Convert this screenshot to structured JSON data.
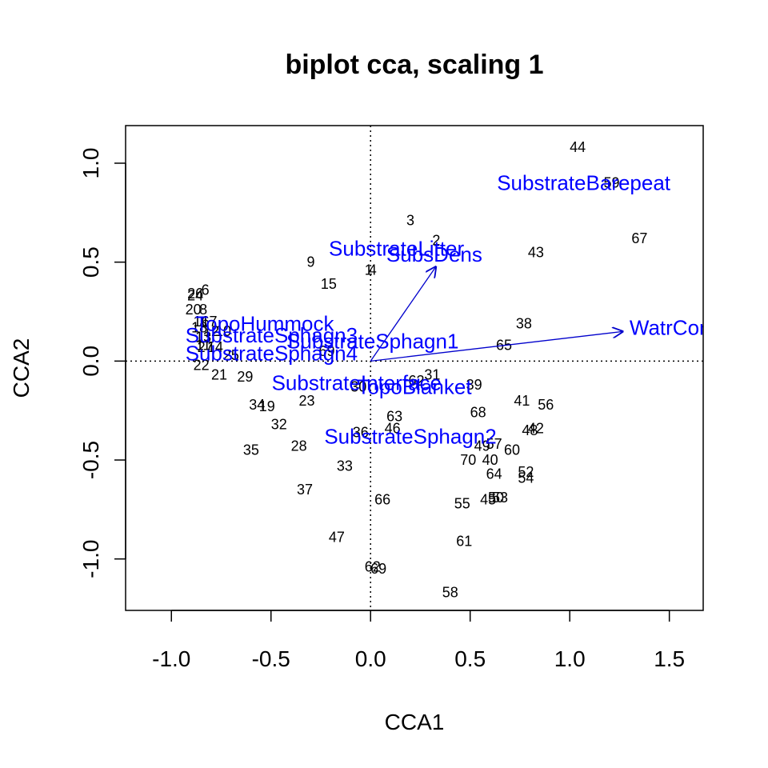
{
  "chart_data": {
    "type": "scatter",
    "title": "biplot cca, scaling 1",
    "xlabel": "CCA1",
    "ylabel": "CCA2",
    "xlim": [
      -1.23,
      1.67
    ],
    "ylim": [
      -1.26,
      1.19
    ],
    "x_ticks": [
      -1.0,
      -0.5,
      0.0,
      0.5,
      1.0,
      1.5
    ],
    "x_tick_labels": [
      "-1.0",
      "-0.5",
      "0.0",
      "0.5",
      "1.0",
      "1.5"
    ],
    "y_ticks": [
      -1.0,
      -0.5,
      0.0,
      0.5,
      1.0
    ],
    "y_tick_labels": [
      "-1.0",
      "-0.5",
      "0.0",
      "0.5",
      "1.0"
    ],
    "reference_lines": {
      "x": 0,
      "y": 0,
      "style": "dotted"
    },
    "sites": [
      {
        "label": "44",
        "x": 1.04,
        "y": 1.08
      },
      {
        "label": "59",
        "x": 1.21,
        "y": 0.9
      },
      {
        "label": "67",
        "x": 1.35,
        "y": 0.62
      },
      {
        "label": "3",
        "x": 0.2,
        "y": 0.71
      },
      {
        "label": "2",
        "x": 0.33,
        "y": 0.61
      },
      {
        "label": "43",
        "x": 0.83,
        "y": 0.55
      },
      {
        "label": "9",
        "x": -0.3,
        "y": 0.5
      },
      {
        "label": "1",
        "x": -0.01,
        "y": 0.46
      },
      {
        "label": "4",
        "x": 0.01,
        "y": 0.46
      },
      {
        "label": "15",
        "x": -0.21,
        "y": 0.39
      },
      {
        "label": "26",
        "x": -0.88,
        "y": 0.34
      },
      {
        "label": "6",
        "x": -0.83,
        "y": 0.36
      },
      {
        "label": "24",
        "x": -0.88,
        "y": 0.33
      },
      {
        "label": "20",
        "x": -0.89,
        "y": 0.26
      },
      {
        "label": "8",
        "x": -0.84,
        "y": 0.26
      },
      {
        "label": "16",
        "x": -0.85,
        "y": 0.2
      },
      {
        "label": "17",
        "x": -0.81,
        "y": 0.2
      },
      {
        "label": "18",
        "x": -0.86,
        "y": 0.17
      },
      {
        "label": "12",
        "x": -0.8,
        "y": 0.15
      },
      {
        "label": "10",
        "x": -0.74,
        "y": 0.15
      },
      {
        "label": "13",
        "x": -0.84,
        "y": 0.12
      },
      {
        "label": "11",
        "x": -0.84,
        "y": 0.08
      },
      {
        "label": "27",
        "x": -0.83,
        "y": 0.07
      },
      {
        "label": "14",
        "x": -0.78,
        "y": 0.07
      },
      {
        "label": "25",
        "x": -0.7,
        "y": 0.03
      },
      {
        "label": "22",
        "x": -0.85,
        "y": -0.02
      },
      {
        "label": "21",
        "x": -0.76,
        "y": -0.07
      },
      {
        "label": "29",
        "x": -0.63,
        "y": -0.08
      },
      {
        "label": "69",
        "x": -0.22,
        "y": 0.05
      },
      {
        "label": "38",
        "x": 0.77,
        "y": 0.19
      },
      {
        "label": "65",
        "x": 0.67,
        "y": 0.08
      },
      {
        "label": "31",
        "x": 0.31,
        "y": -0.07
      },
      {
        "label": "30",
        "x": -0.06,
        "y": -0.13
      },
      {
        "label": "39",
        "x": 0.52,
        "y": -0.12
      },
      {
        "label": "62",
        "x": 0.23,
        "y": -0.1
      },
      {
        "label": "41",
        "x": 0.76,
        "y": -0.2
      },
      {
        "label": "56",
        "x": 0.88,
        "y": -0.22
      },
      {
        "label": "34",
        "x": -0.57,
        "y": -0.22
      },
      {
        "label": "19",
        "x": -0.52,
        "y": -0.23
      },
      {
        "label": "23",
        "x": -0.32,
        "y": -0.2
      },
      {
        "label": "68",
        "x": 0.54,
        "y": -0.26
      },
      {
        "label": "63",
        "x": 0.12,
        "y": -0.28
      },
      {
        "label": "32",
        "x": -0.46,
        "y": -0.32
      },
      {
        "label": "46",
        "x": 0.11,
        "y": -0.34
      },
      {
        "label": "42",
        "x": 0.83,
        "y": -0.34
      },
      {
        "label": "48",
        "x": 0.8,
        "y": -0.35
      },
      {
        "label": "36",
        "x": -0.05,
        "y": -0.36
      },
      {
        "label": "49",
        "x": 0.56,
        "y": -0.43
      },
      {
        "label": "57",
        "x": 0.62,
        "y": -0.42
      },
      {
        "label": "60",
        "x": 0.71,
        "y": -0.45
      },
      {
        "label": "35",
        "x": -0.6,
        "y": -0.45
      },
      {
        "label": "28",
        "x": -0.36,
        "y": -0.43
      },
      {
        "label": "70",
        "x": 0.49,
        "y": -0.5
      },
      {
        "label": "40",
        "x": 0.6,
        "y": -0.5
      },
      {
        "label": "33",
        "x": -0.13,
        "y": -0.53
      },
      {
        "label": "64",
        "x": 0.62,
        "y": -0.57
      },
      {
        "label": "52",
        "x": 0.78,
        "y": -0.56
      },
      {
        "label": "54",
        "x": 0.78,
        "y": -0.59
      },
      {
        "label": "37",
        "x": -0.33,
        "y": -0.65
      },
      {
        "label": "66",
        "x": 0.06,
        "y": -0.7
      },
      {
        "label": "45",
        "x": 0.59,
        "y": -0.7
      },
      {
        "label": "50",
        "x": 0.63,
        "y": -0.69
      },
      {
        "label": "53",
        "x": 0.65,
        "y": -0.69
      },
      {
        "label": "55",
        "x": 0.46,
        "y": -0.72
      },
      {
        "label": "47",
        "x": -0.17,
        "y": -0.89
      },
      {
        "label": "61",
        "x": 0.47,
        "y": -0.91
      },
      {
        "label": "62",
        "x": 0.01,
        "y": -1.04
      },
      {
        "label": "69",
        "x": 0.04,
        "y": -1.05
      },
      {
        "label": "58",
        "x": 0.4,
        "y": -1.17
      }
    ],
    "env_vectors": [
      {
        "label": "SubstrateBarepeat",
        "x": 1.07,
        "y": 0.9,
        "arrow": false,
        "anchor": "middle"
      },
      {
        "label": "SubstrateLitter",
        "x": 0.13,
        "y": 0.57,
        "arrow": false,
        "anchor": "middle"
      },
      {
        "label": "SubsDens",
        "x": 0.33,
        "y": 0.48,
        "arrow": true,
        "label_x": 0.32,
        "label_y": 0.54,
        "anchor": "middle"
      },
      {
        "label": "WatrCont",
        "x": 1.27,
        "y": 0.15,
        "arrow": true,
        "label_x": 1.3,
        "label_y": 0.17,
        "anchor": "start"
      },
      {
        "label": "TopoHummock",
        "x": -0.88,
        "y": 0.19,
        "arrow": false,
        "anchor": "start"
      },
      {
        "label": "SubstrateSphagn3",
        "x": -0.93,
        "y": 0.13,
        "arrow": false,
        "anchor": "start"
      },
      {
        "label": "SubstrateSphagn1",
        "x": 0.01,
        "y": 0.1,
        "arrow": false,
        "anchor": "middle"
      },
      {
        "label": "SubstrateSphagn4",
        "x": -0.93,
        "y": 0.04,
        "arrow": false,
        "anchor": "start"
      },
      {
        "label": "SubstrateInterface",
        "x": -0.07,
        "y": -0.11,
        "arrow": false,
        "anchor": "middle"
      },
      {
        "label": "TopoBlanket",
        "x": 0.22,
        "y": -0.13,
        "arrow": false,
        "anchor": "middle"
      },
      {
        "label": "SubstrateSphagn2",
        "x": 0.2,
        "y": -0.38,
        "arrow": false,
        "anchor": "middle"
      }
    ]
  }
}
